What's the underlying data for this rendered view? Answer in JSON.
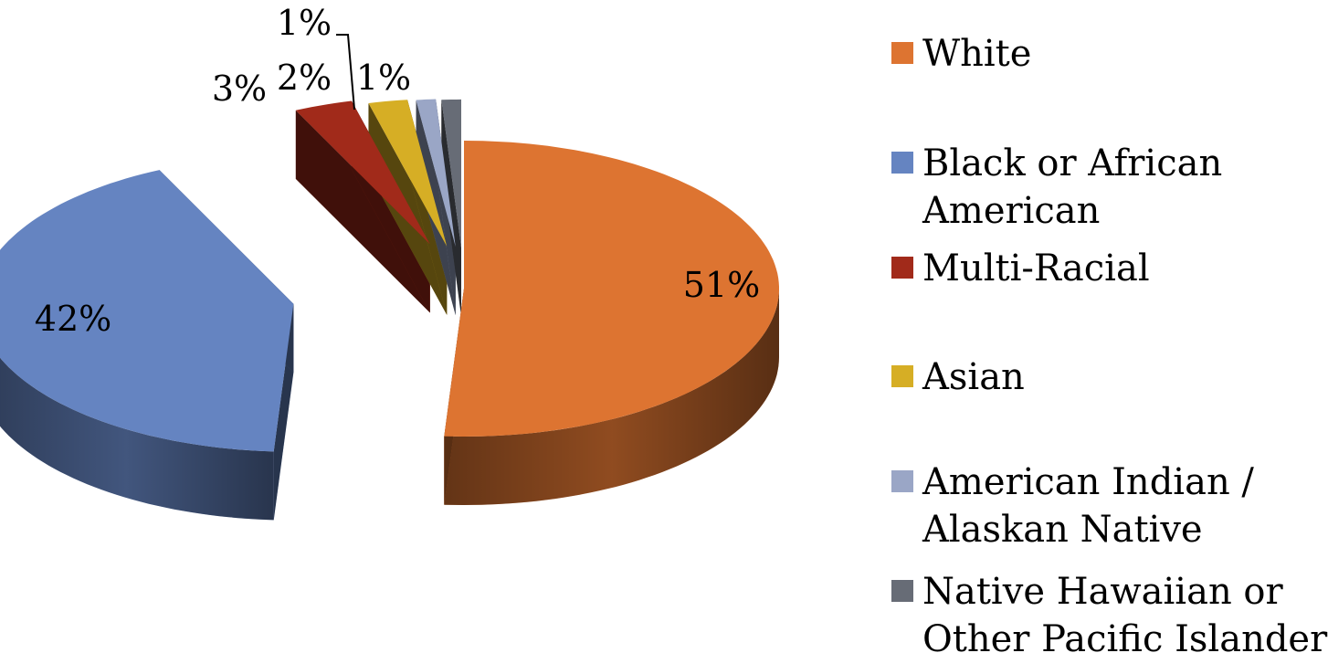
{
  "chart_data": {
    "type": "pie",
    "style": "3d-exploded",
    "categories": [
      "White",
      "Black or African American",
      "Multi-Racial",
      "Asian",
      "American Indian / Alaskan Native",
      "Native Hawaiian or Other Pacific Islander"
    ],
    "values": [
      51,
      42,
      3,
      2,
      1,
      1
    ],
    "labels": [
      "51%",
      "42%",
      "3%",
      "2%",
      "1%",
      "1%"
    ],
    "legend_lines": [
      [
        "White"
      ],
      [
        "Black or African",
        "American"
      ],
      [
        "Multi-Racial"
      ],
      [
        "Asian"
      ],
      [
        "American Indian /",
        "Alaskan Native"
      ],
      [
        "Native Hawaiian or",
        "Other Pacific Islander"
      ]
    ],
    "colors": [
      "#DD7431",
      "#6584C1",
      "#A12A1A",
      "#D6AE25",
      "#9AA6C6",
      "#676C76"
    ],
    "legend_position": "right",
    "title": ""
  }
}
